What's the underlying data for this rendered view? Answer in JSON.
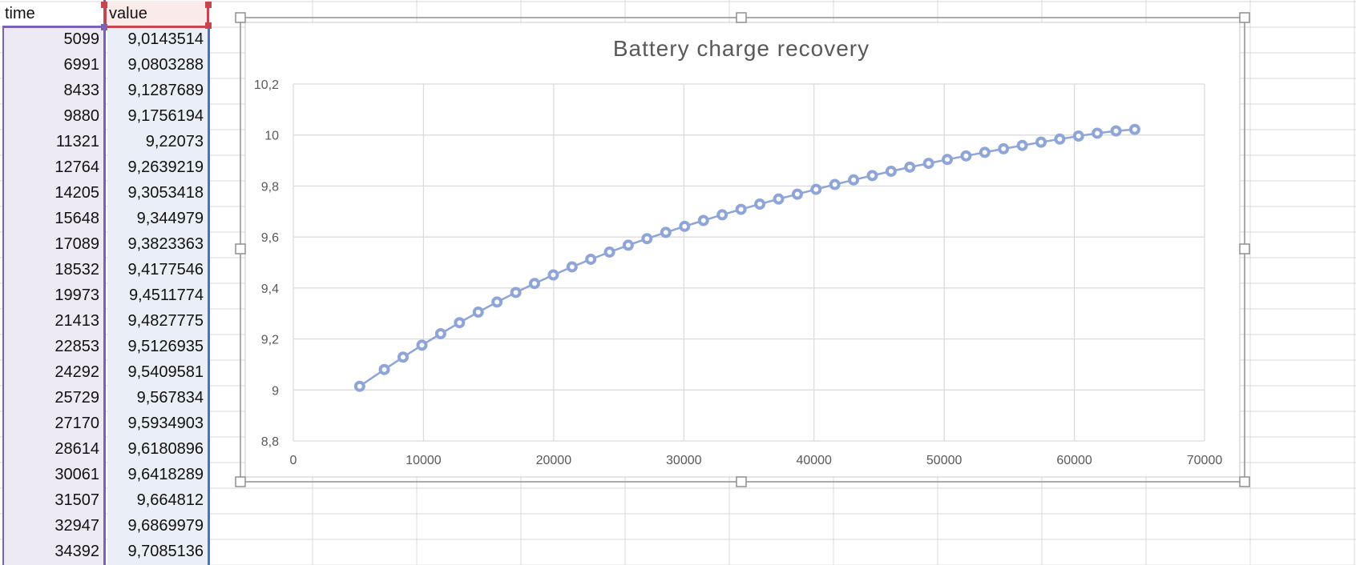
{
  "sheet": {
    "columns": [
      {
        "header": "time"
      },
      {
        "header": "value"
      }
    ],
    "rows": [
      {
        "time": "5099",
        "value": "9,0143514"
      },
      {
        "time": "6991",
        "value": "9,0803288"
      },
      {
        "time": "8433",
        "value": "9,1287689"
      },
      {
        "time": "9880",
        "value": "9,1756194"
      },
      {
        "time": "11321",
        "value": "9,22073"
      },
      {
        "time": "12764",
        "value": "9,2639219"
      },
      {
        "time": "14205",
        "value": "9,3053418"
      },
      {
        "time": "15648",
        "value": "9,344979"
      },
      {
        "time": "17089",
        "value": "9,3823363"
      },
      {
        "time": "18532",
        "value": "9,4177546"
      },
      {
        "time": "19973",
        "value": "9,4511774"
      },
      {
        "time": "21413",
        "value": "9,4827775"
      },
      {
        "time": "22853",
        "value": "9,5126935"
      },
      {
        "time": "24292",
        "value": "9,5409581"
      },
      {
        "time": "25729",
        "value": "9,567834"
      },
      {
        "time": "27170",
        "value": "9,5934903"
      },
      {
        "time": "28614",
        "value": "9,6180896"
      },
      {
        "time": "30061",
        "value": "9,6418289"
      },
      {
        "time": "31507",
        "value": "9,664812"
      },
      {
        "time": "32947",
        "value": "9,6869979"
      },
      {
        "time": "34392",
        "value": "9,7085136"
      }
    ],
    "colors": {
      "time_column_highlight": "#7a62b8",
      "value_column_highlight": "#4a72c8",
      "header_highlight": "#c7454f"
    }
  },
  "chart_data": {
    "type": "scatter",
    "title": "Battery charge recovery",
    "xlabel": "",
    "ylabel": "",
    "xlim": [
      0,
      70000
    ],
    "ylim": [
      8.8,
      10.2
    ],
    "x_ticks": [
      "0",
      "10000",
      "20000",
      "30000",
      "40000",
      "50000",
      "60000",
      "70000"
    ],
    "y_ticks": [
      "8,8",
      "9",
      "9,2",
      "9,4",
      "9,6",
      "9,8",
      "10",
      "10,2"
    ],
    "grid": true,
    "legend": "none",
    "series_color": "#8fa5d8",
    "series": [
      {
        "x": [
          5099,
          6991,
          8433,
          9880,
          11321,
          12764,
          14205,
          15648,
          17089,
          18532,
          19973,
          21413,
          22853,
          24292,
          25729,
          27170,
          28614,
          30061,
          31507,
          32947,
          34392,
          35835,
          37280,
          38720,
          40160,
          41600,
          43040,
          44480,
          45920,
          47360,
          48800,
          50240,
          51680,
          53120,
          54560,
          56000,
          57440,
          58880,
          60320,
          61760,
          63200,
          64640
        ],
        "y": [
          9.0143514,
          9.0803288,
          9.1287689,
          9.1756194,
          9.22073,
          9.2639219,
          9.3053418,
          9.344979,
          9.3823363,
          9.4177546,
          9.4511774,
          9.4827775,
          9.5126935,
          9.5409581,
          9.567834,
          9.5934903,
          9.6180896,
          9.6418289,
          9.664812,
          9.6869979,
          9.7085136,
          9.729,
          9.749,
          9.768,
          9.787,
          9.806,
          9.824,
          9.841,
          9.858,
          9.874,
          9.889,
          9.904,
          9.918,
          9.932,
          9.946,
          9.959,
          9.972,
          9.984,
          9.996,
          10.007,
          10.016,
          10.022
        ]
      }
    ]
  }
}
